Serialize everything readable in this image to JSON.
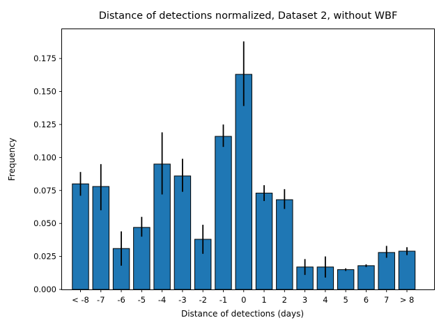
{
  "chart_data": {
    "type": "bar",
    "title": "Distance of detections normalized, Dataset 2, without WBF",
    "xlabel": "Distance of detections (days)",
    "ylabel": "Frequency",
    "categories": [
      "< -8",
      "-7",
      "-6",
      "-5",
      "-4",
      "-3",
      "-2",
      "-1",
      "0",
      "1",
      "2",
      "3",
      "4",
      "5",
      "6",
      "7",
      "> 8"
    ],
    "values": [
      0.08,
      0.078,
      0.031,
      0.047,
      0.095,
      0.086,
      0.038,
      0.116,
      0.163,
      0.073,
      0.068,
      0.017,
      0.017,
      0.015,
      0.018,
      0.028,
      0.029
    ],
    "error_low": [
      0.071,
      0.06,
      0.018,
      0.04,
      0.072,
      0.074,
      0.027,
      0.108,
      0.139,
      0.067,
      0.061,
      0.011,
      0.009,
      0.014,
      0.017,
      0.024,
      0.026
    ],
    "error_high": [
      0.089,
      0.095,
      0.044,
      0.055,
      0.119,
      0.099,
      0.049,
      0.125,
      0.188,
      0.079,
      0.076,
      0.023,
      0.025,
      0.016,
      0.019,
      0.033,
      0.032
    ],
    "ylim": [
      0,
      0.1972
    ],
    "yticks": [
      0.0,
      0.025,
      0.05,
      0.075,
      0.1,
      0.125,
      0.15,
      0.175
    ],
    "ytick_labels": [
      "0.000",
      "0.025",
      "0.050",
      "0.075",
      "0.100",
      "0.125",
      "0.150",
      "0.175"
    ],
    "bar_color": "#1f77b4",
    "edge_color": "#000000",
    "error_color": "#000000",
    "grid": false,
    "legend": "none"
  }
}
